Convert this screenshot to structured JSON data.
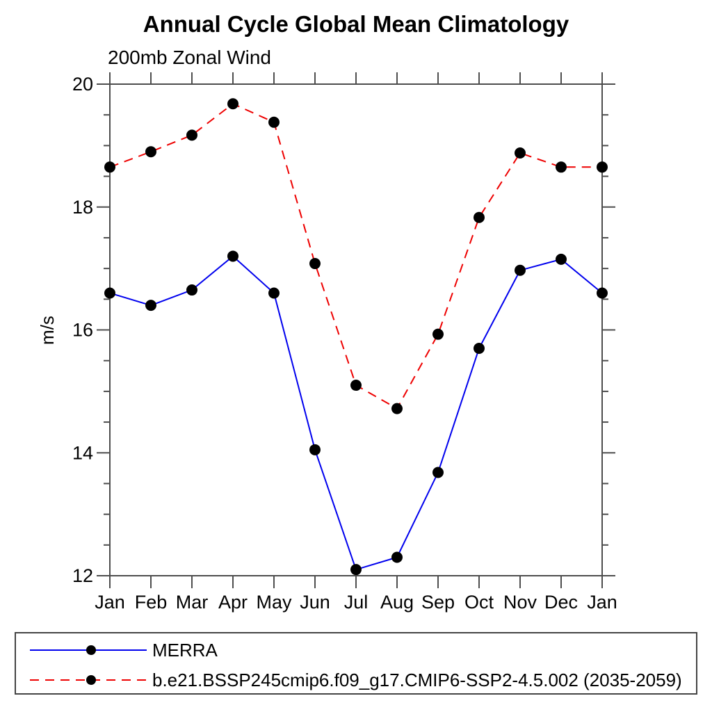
{
  "title": "Annual Cycle Global Mean Climatology",
  "subtitle": "200mb Zonal Wind",
  "ylabel": "m/s",
  "chart_data": {
    "type": "line",
    "categories": [
      "Jan",
      "Feb",
      "Mar",
      "Apr",
      "May",
      "Jun",
      "Jul",
      "Aug",
      "Sep",
      "Oct",
      "Nov",
      "Dec",
      "Jan"
    ],
    "series": [
      {
        "name": "MERRA",
        "color": "#0000ee",
        "line_style": "solid",
        "marker": "filled-circle",
        "values": [
          16.6,
          16.4,
          16.65,
          17.2,
          16.6,
          14.05,
          12.1,
          12.3,
          13.68,
          15.7,
          16.97,
          17.15,
          16.6
        ]
      },
      {
        "name": "b.e21.BSSP245cmip6.f09_g17.CMIP6-SSP2-4.5.002 (2035-2059)",
        "color": "#ee0000",
        "line_style": "dashed",
        "marker": "filled-circle",
        "values": [
          18.65,
          18.9,
          19.17,
          19.68,
          19.38,
          17.08,
          15.1,
          14.72,
          15.93,
          17.83,
          18.88,
          18.65,
          18.65
        ]
      }
    ],
    "ylim": [
      12,
      20
    ],
    "yticks": [
      12,
      14,
      16,
      18,
      20
    ],
    "minor_tick_interval": 0.5,
    "marker_color": "#000000",
    "grid": false,
    "legend_position": "bottom-left-box"
  }
}
